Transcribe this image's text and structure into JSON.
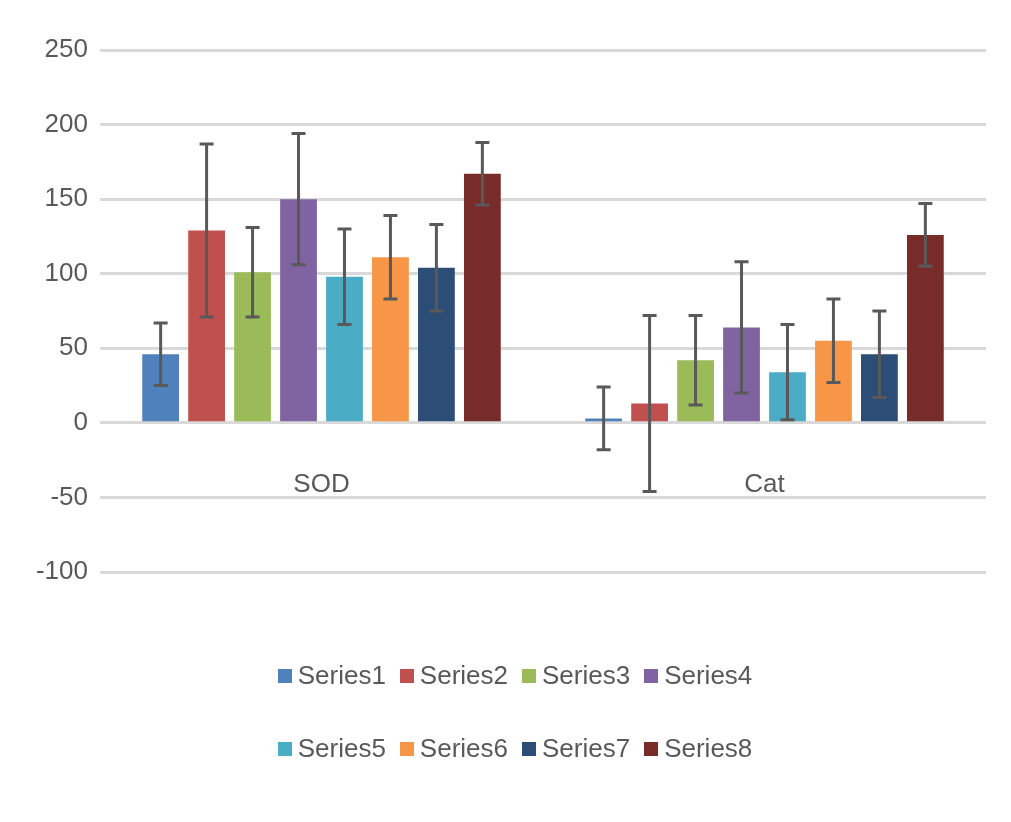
{
  "chart_data": {
    "type": "bar",
    "categories": [
      "SOD",
      "Cat"
    ],
    "series": [
      {
        "name": "Series1",
        "color": "#4f81bd",
        "values": [
          46,
          3
        ],
        "errors": [
          21,
          21
        ]
      },
      {
        "name": "Series2",
        "color": "#c0504d",
        "values": [
          129,
          13
        ],
        "errors": [
          58,
          59
        ]
      },
      {
        "name": "Series3",
        "color": "#9bbb59",
        "values": [
          101,
          42
        ],
        "errors": [
          30,
          30
        ]
      },
      {
        "name": "Series4",
        "color": "#8064a2",
        "values": [
          150,
          64
        ],
        "errors": [
          44,
          44
        ]
      },
      {
        "name": "Series5",
        "color": "#4bacc6",
        "values": [
          98,
          34
        ],
        "errors": [
          32,
          32
        ]
      },
      {
        "name": "Series6",
        "color": "#f79646",
        "values": [
          111,
          55
        ],
        "errors": [
          28,
          28
        ]
      },
      {
        "name": "Series7",
        "color": "#2c4d75",
        "values": [
          104,
          46
        ],
        "errors": [
          29,
          29
        ]
      },
      {
        "name": "Series8",
        "color": "#772c2a",
        "values": [
          167,
          126
        ],
        "errors": [
          21,
          21
        ]
      }
    ],
    "ylim": [
      -100,
      250
    ],
    "yticks": [
      -100,
      -50,
      0,
      50,
      100,
      150,
      200,
      250
    ],
    "grid": "y",
    "legend": "bottom"
  }
}
